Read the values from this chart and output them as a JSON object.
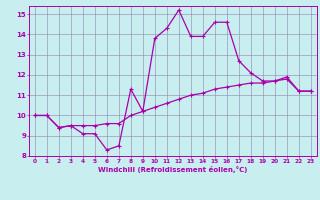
{
  "title": "",
  "xlabel": "Windchill (Refroidissement éolien,°C)",
  "bg_color": "#c8eef0",
  "line_color": "#aa00aa",
  "grid_color": "#9999bb",
  "spine_color": "#aa00aa",
  "xlim": [
    -0.5,
    23.5
  ],
  "ylim": [
    8,
    15.4
  ],
  "xticks": [
    0,
    1,
    2,
    3,
    4,
    5,
    6,
    7,
    8,
    9,
    10,
    11,
    12,
    13,
    14,
    15,
    16,
    17,
    18,
    19,
    20,
    21,
    22,
    23
  ],
  "yticks": [
    8,
    9,
    10,
    11,
    12,
    13,
    14,
    15
  ],
  "line1_x": [
    0,
    1,
    2,
    3,
    4,
    5,
    6,
    7,
    8,
    9,
    10,
    11,
    12,
    13,
    14,
    15,
    16,
    17,
    18,
    19,
    20,
    21,
    22,
    23
  ],
  "line1_y": [
    10.0,
    10.0,
    9.4,
    9.5,
    9.1,
    9.1,
    8.3,
    8.5,
    11.3,
    10.2,
    13.8,
    14.3,
    15.2,
    13.9,
    13.9,
    14.6,
    14.6,
    12.7,
    12.1,
    11.7,
    11.7,
    11.9,
    11.2,
    11.2
  ],
  "line2_x": [
    0,
    1,
    2,
    3,
    4,
    5,
    6,
    7,
    8,
    9,
    10,
    11,
    12,
    13,
    14,
    15,
    16,
    17,
    18,
    19,
    20,
    21,
    22,
    23
  ],
  "line2_y": [
    10.0,
    10.0,
    9.4,
    9.5,
    9.5,
    9.5,
    9.6,
    9.6,
    10.0,
    10.2,
    10.4,
    10.6,
    10.8,
    11.0,
    11.1,
    11.3,
    11.4,
    11.5,
    11.6,
    11.6,
    11.7,
    11.8,
    11.2,
    11.2
  ]
}
